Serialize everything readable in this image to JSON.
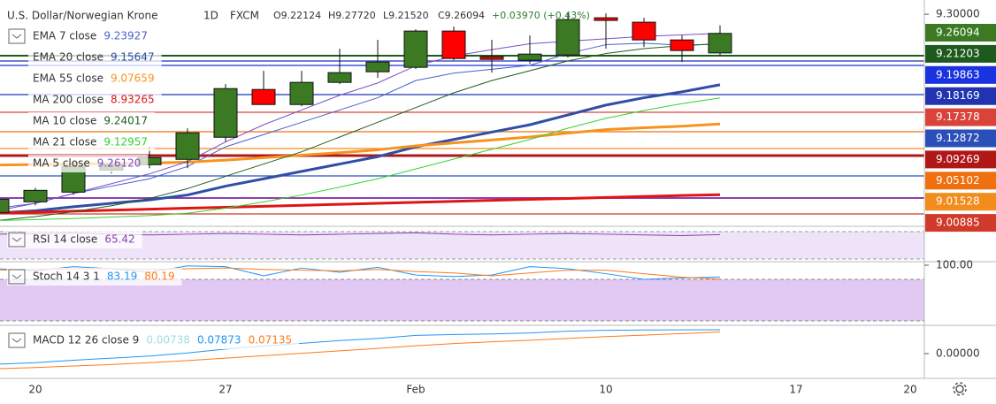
{
  "chart_data": [
    {
      "type": "candlestick",
      "title": "U.S. Dollar/Norwegian Krone",
      "interval": "1D",
      "source": "FXCM",
      "ohlc": [
        "O9.22124",
        "H9.27720",
        "L9.21520",
        "C9.26094"
      ],
      "change": "+0.03970 (+0.43%)",
      "categories": [
        null,
        "20",
        null,
        null,
        null,
        null,
        "27",
        null,
        null,
        null,
        null,
        "Feb",
        null,
        null,
        null,
        null,
        "10",
        null,
        null,
        null,
        null,
        "17",
        null,
        null,
        "20"
      ],
      "open": [
        8.8964,
        8.918,
        8.9378,
        8.9829,
        8.9937,
        9.0045,
        9.0495,
        9.1468,
        9.1162,
        9.1613,
        9.1829,
        9.1919,
        9.2658,
        9.2135,
        9.2063,
        9.2171,
        9.2928,
        9.2838,
        9.2477,
        9.22124,
        null,
        null,
        null,
        null,
        null
      ],
      "high": [
        8.9324,
        8.9468,
        9.0009,
        9.0045,
        9.0315,
        9.0676,
        9.1577,
        9.1847,
        9.1847,
        9.2297,
        9.2477,
        9.2694,
        9.2748,
        9.2477,
        9.2568,
        9.3018,
        9.3018,
        9.2928,
        9.2568,
        9.2772,
        null,
        null,
        null,
        null,
        null
      ],
      "low": [
        8.8874,
        8.9108,
        8.9324,
        8.9757,
        8.9865,
        8.9865,
        9.0405,
        9.1162,
        9.1126,
        9.1577,
        9.1703,
        9.1883,
        9.2063,
        9.1811,
        9.1991,
        9.2117,
        9.2297,
        9.2333,
        9.2027,
        9.2152,
        null,
        null,
        null,
        null,
        null
      ],
      "close": [
        8.9234,
        8.9414,
        8.9901,
        8.9937,
        9.0081,
        9.0586,
        9.1486,
        9.1162,
        9.1613,
        9.1811,
        9.2027,
        9.2658,
        9.2099,
        9.2081,
        9.2189,
        9.2892,
        9.2874,
        9.2477,
        9.2261,
        9.26094,
        null,
        null,
        null,
        null,
        null
      ],
      "up_color": "#3b7a23",
      "down_color": "#ff0000",
      "ylim": [
        8.87,
        9.32
      ],
      "yticks": [
        {
          "value": 9.3,
          "label": "9.30000"
        }
      ],
      "series": [
        {
          "name": "EMA 7 close",
          "legend_value": "9.23927",
          "color": "#4a5fd0",
          "line_width": 1,
          "values": [
            8.905,
            8.915,
            8.935,
            8.95,
            8.965,
            8.99,
            9.03,
            9.055,
            9.08,
            9.105,
            9.13,
            9.165,
            9.18,
            9.188,
            9.196,
            9.22,
            9.238,
            9.241,
            9.237,
            9.23927,
            null,
            null,
            null,
            null,
            null
          ]
        },
        {
          "name": "EMA 20 close",
          "legend_value": "9.15647",
          "color": "#2f4fa6",
          "line_width": 3,
          "values": [
            8.895,
            8.9,
            8.908,
            8.915,
            8.922,
            8.932,
            8.95,
            8.965,
            8.98,
            8.995,
            9.01,
            9.03,
            9.045,
            9.06,
            9.075,
            9.095,
            9.115,
            9.13,
            9.142,
            9.15647,
            null,
            null,
            null,
            null,
            null
          ]
        },
        {
          "name": "EMA 55 close",
          "legend_value": "9.07659",
          "color": "#f7931e",
          "line_width": 3,
          "values": [
            8.993,
            8.994,
            8.995,
            8.996,
            8.997,
            8.999,
            9.003,
            9.008,
            9.013,
            9.018,
            9.024,
            9.032,
            9.038,
            9.044,
            9.05,
            9.058,
            9.065,
            9.069,
            9.072,
            9.07659,
            null,
            null,
            null,
            null,
            null
          ]
        },
        {
          "name": "MA 200 close",
          "legend_value": "8.93265",
          "color": "#e01414",
          "line_width": 3,
          "values": [
            8.895,
            8.897,
            8.899,
            8.901,
            8.903,
            8.905,
            8.907,
            8.909,
            8.911,
            8.913,
            8.915,
            8.917,
            8.919,
            8.921,
            8.923,
            8.925,
            8.927,
            8.929,
            8.931,
            8.93265,
            null,
            null,
            null,
            null,
            null
          ]
        },
        {
          "name": "MA 10 close",
          "legend_value": "9.24017",
          "color": "#1f5e20",
          "line_width": 1,
          "values": [
            8.88,
            8.888,
            8.898,
            8.91,
            8.925,
            8.945,
            8.97,
            8.995,
            9.02,
            9.05,
            9.08,
            9.11,
            9.14,
            9.165,
            9.185,
            9.205,
            9.22,
            9.23,
            9.236,
            9.24017,
            null,
            null,
            null,
            null,
            null
          ]
        },
        {
          "name": "MA 21 close",
          "legend_value": "9.12957",
          "color": "#2fd52f",
          "line_width": 1,
          "values": [
            8.88,
            8.882,
            8.884,
            8.887,
            8.89,
            8.895,
            8.905,
            8.918,
            8.932,
            8.948,
            8.965,
            8.985,
            9.005,
            9.025,
            9.045,
            9.068,
            9.088,
            9.104,
            9.118,
            9.12957,
            null,
            null,
            null,
            null,
            null
          ]
        },
        {
          "name": "MA 5 close",
          "legend_value": "9.26120",
          "color": "#7a4fc9",
          "line_width": 1,
          "values": [
            8.9,
            8.915,
            8.935,
            8.955,
            8.975,
            9.0,
            9.04,
            9.075,
            9.105,
            9.135,
            9.16,
            9.195,
            9.215,
            9.228,
            9.24,
            9.245,
            9.25,
            9.255,
            9.258,
            9.2612,
            null,
            null,
            null,
            null,
            null
          ]
        }
      ],
      "price_tags": [
        {
          "label": "9.26094",
          "color": "#3b7a23"
        },
        {
          "label": "9.21203",
          "color": "#1e5a1e"
        },
        {
          "label": "9.19863",
          "color": "#1a33e0"
        },
        {
          "label": "9.18169",
          "color": "#2233b0"
        },
        {
          "label": "9.17378",
          "color": "#d9433a"
        },
        {
          "label": "9.12872",
          "color": "#2b4fb8"
        },
        {
          "label": "9.09269",
          "color": "#b01818"
        },
        {
          "label": "9.05102",
          "color": "#f07010"
        },
        {
          "label": "9.01528",
          "color": "#f28c1c"
        },
        {
          "label": "9.00885",
          "color": "#d03a2a"
        }
      ]
    },
    {
      "type": "line",
      "ylim": [
        27,
        75
      ],
      "series": [
        {
          "name": "RSI 14 close",
          "legend_value": "65.42",
          "color": "#8e3fb0",
          "line_width": 1,
          "values": [
            66,
            67,
            68,
            66,
            65,
            66,
            67,
            66,
            65,
            66,
            67,
            68,
            66,
            65,
            66,
            67,
            66,
            65,
            64,
            65.42,
            null,
            null,
            null,
            null,
            null
          ]
        }
      ]
    },
    {
      "type": "line",
      "ylim": [
        16,
        102.5
      ],
      "yticks": [
        {
          "value": 100,
          "label": "100.00"
        }
      ],
      "legend_label": "Stoch 14 3 1",
      "legend_values": [
        {
          "text": "83.19",
          "color": "#2196f3"
        },
        {
          "text": "80.19",
          "color": "#ff7a1a"
        }
      ],
      "series": [
        {
          "color": "#2196f3",
          "line_width": 1,
          "values": [
            95,
            92,
            98,
            95,
            90,
            99,
            98,
            85,
            96,
            90,
            97,
            86,
            84,
            86,
            98,
            95,
            88,
            80,
            82,
            83.19,
            null,
            null,
            null,
            null,
            null
          ]
        },
        {
          "color": "#ff7a1a",
          "line_width": 1,
          "values": [
            93,
            94,
            95,
            95,
            94,
            95,
            96,
            94,
            93,
            92,
            94,
            91,
            89,
            85,
            89,
            93,
            93,
            88,
            83,
            80.19,
            null,
            null,
            null,
            null,
            null
          ]
        }
      ]
    },
    {
      "type": "line",
      "ylim": [
        -0.073,
        0.0875
      ],
      "yticks": [
        {
          "value": 0,
          "label": "0.00000"
        }
      ],
      "legend_label": "MACD 12 26 close 9",
      "legend_values": [
        {
          "text": "0.00738",
          "color": "#9fdde4"
        },
        {
          "text": "0.07873",
          "color": "#2196f3"
        },
        {
          "text": "0.07135",
          "color": "#ff7a1a"
        }
      ],
      "series": [
        {
          "color": "#2196f3",
          "line_width": 1,
          "values": [
            -0.035,
            -0.03,
            -0.022,
            -0.015,
            -0.008,
            0.002,
            0.015,
            0.025,
            0.034,
            0.043,
            0.05,
            0.06,
            0.063,
            0.065,
            0.068,
            0.074,
            0.077,
            0.078,
            0.0785,
            0.07873,
            null,
            null,
            null,
            null,
            null
          ]
        },
        {
          "color": "#ff7a1a",
          "line_width": 1,
          "values": [
            -0.05,
            -0.046,
            -0.041,
            -0.036,
            -0.03,
            -0.023,
            -0.015,
            -0.007,
            0.001,
            0.009,
            0.017,
            0.026,
            0.033,
            0.039,
            0.044,
            0.05,
            0.056,
            0.061,
            0.066,
            0.07135,
            null,
            null,
            null,
            null,
            null
          ]
        }
      ]
    }
  ]
}
